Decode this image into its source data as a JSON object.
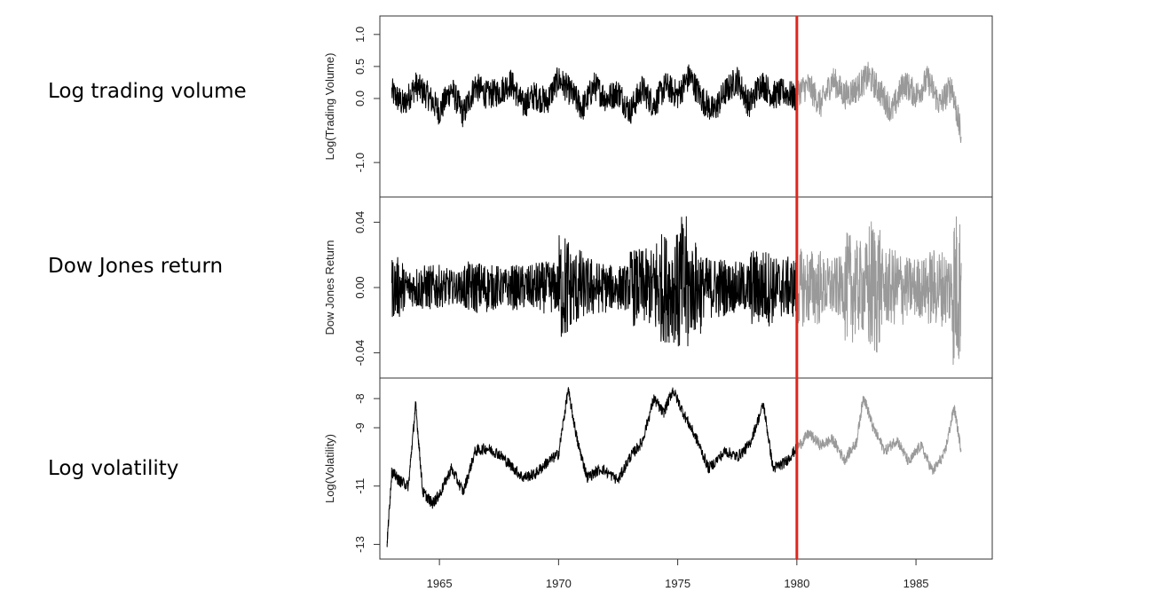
{
  "left_labels": [
    "Log trading volume",
    "Dow Jones return",
    "Log volatility"
  ],
  "chart_data": {
    "type": "line",
    "x_ticks": [
      1965,
      1970,
      1975,
      1980,
      1985
    ],
    "xlim": [
      1962.5,
      1988.2
    ],
    "split_year": 1980,
    "colors": {
      "before": "#000000",
      "after": "#999999",
      "split_line": "#e0261b"
    },
    "panels": [
      {
        "ylabel": "Log(Trading Volume)",
        "ylim": [
          -1.4,
          1.15
        ],
        "y_ticks": [
          -1.0,
          0.0,
          0.5,
          1.0
        ],
        "y_tick_labels": [
          "-1.0",
          "0.0",
          "0.5",
          "1.0"
        ],
        "series": [
          {
            "period": "before",
            "x": [
              1963.0,
              1963.5,
              1964.0,
              1964.5,
              1965.0,
              1965.5,
              1966.0,
              1966.5,
              1967.0,
              1967.5,
              1968.0,
              1968.5,
              1969.0,
              1969.5,
              1970.0,
              1970.5,
              1971.0,
              1971.5,
              1972.0,
              1972.5,
              1973.0,
              1973.5,
              1974.0,
              1974.5,
              1975.0,
              1975.5,
              1976.0,
              1976.5,
              1977.0,
              1977.5,
              1978.0,
              1978.5,
              1979.0,
              1979.5,
              1980.0
            ],
            "y": [
              0.1,
              -0.1,
              0.2,
              0.05,
              -0.2,
              0.15,
              -0.25,
              0.2,
              0.05,
              0.1,
              0.25,
              -0.1,
              0.05,
              -0.05,
              0.3,
              0.1,
              -0.15,
              0.2,
              0.0,
              0.1,
              -0.2,
              0.15,
              -0.1,
              0.2,
              0.05,
              0.35,
              0.0,
              -0.2,
              0.1,
              0.3,
              -0.1,
              0.25,
              0.05,
              0.1,
              0.0
            ]
          },
          {
            "period": "after",
            "x": [
              1980.0,
              1980.5,
              1981.0,
              1981.5,
              1982.0,
              1982.5,
              1983.0,
              1983.5,
              1984.0,
              1984.5,
              1985.0,
              1985.5,
              1986.0,
              1986.5,
              1986.9
            ],
            "y": [
              0.1,
              0.2,
              -0.1,
              0.3,
              0.05,
              0.15,
              0.35,
              0.1,
              -0.2,
              0.25,
              0.05,
              0.3,
              -0.1,
              0.2,
              -0.6
            ]
          }
        ]
      },
      {
        "ylabel": "Dow Jones Return",
        "ylim": [
          -0.05,
          0.05
        ],
        "y_ticks": [
          -0.04,
          0.0,
          0.04
        ],
        "y_tick_labels": [
          "-0.04",
          "0.00",
          "0.04"
        ],
        "series": [
          {
            "period": "before",
            "x": [
              1963.0,
              1963.5,
              1964.0,
              1964.5,
              1965.0,
              1965.5,
              1966.0,
              1966.5,
              1967.0,
              1967.5,
              1968.0,
              1968.5,
              1969.0,
              1969.5,
              1970.0,
              1970.5,
              1971.0,
              1971.5,
              1972.0,
              1972.5,
              1973.0,
              1973.5,
              1974.0,
              1974.5,
              1975.0,
              1975.5,
              1976.0,
              1976.5,
              1977.0,
              1977.5,
              1978.0,
              1978.5,
              1979.0,
              1979.5,
              1980.0
            ],
            "y": [
              0.015,
              -0.008,
              0.01,
              -0.01,
              0.008,
              -0.006,
              0.012,
              -0.012,
              0.01,
              -0.008,
              0.01,
              -0.01,
              0.012,
              -0.012,
              0.03,
              -0.02,
              0.015,
              -0.012,
              0.01,
              -0.01,
              0.02,
              -0.02,
              0.03,
              -0.03,
              0.04,
              -0.025,
              0.015,
              -0.015,
              0.012,
              -0.012,
              0.02,
              -0.02,
              0.015,
              -0.015,
              0.01
            ]
          },
          {
            "period": "after",
            "x": [
              1980.0,
              1980.5,
              1981.0,
              1981.5,
              1982.0,
              1982.5,
              1983.0,
              1983.5,
              1984.0,
              1984.5,
              1985.0,
              1985.5,
              1986.0,
              1986.5,
              1986.9
            ],
            "y": [
              0.02,
              -0.02,
              0.015,
              -0.015,
              0.03,
              -0.025,
              0.04,
              -0.02,
              0.02,
              -0.015,
              0.015,
              -0.02,
              0.02,
              -0.045,
              0.015
            ]
          }
        ]
      },
      {
        "ylabel": "Log(Volatility)",
        "ylim": [
          -13.2,
          -7.6
        ],
        "y_ticks": [
          -13,
          -11,
          -9,
          -8
        ],
        "y_tick_labels": [
          "-13",
          "-11",
          "-9",
          "-8"
        ],
        "series": [
          {
            "period": "before",
            "x": [
              1962.8,
              1963.0,
              1963.3,
              1963.7,
              1964.0,
              1964.3,
              1964.7,
              1965.0,
              1965.5,
              1966.0,
              1966.5,
              1967.0,
              1967.5,
              1968.0,
              1968.5,
              1969.0,
              1969.5,
              1970.0,
              1970.4,
              1970.8,
              1971.2,
              1971.8,
              1972.5,
              1973.0,
              1973.5,
              1974.0,
              1974.4,
              1974.8,
              1975.3,
              1975.8,
              1976.3,
              1977.0,
              1977.5,
              1978.0,
              1978.6,
              1979.0,
              1979.5,
              1980.0
            ],
            "y": [
              -13.0,
              -10.5,
              -10.8,
              -11.0,
              -8.2,
              -11.2,
              -11.6,
              -11.3,
              -10.4,
              -11.2,
              -9.8,
              -9.7,
              -9.9,
              -10.3,
              -10.7,
              -10.6,
              -10.2,
              -9.9,
              -7.7,
              -9.5,
              -10.7,
              -10.4,
              -10.8,
              -10.0,
              -9.5,
              -8.0,
              -8.5,
              -7.7,
              -8.6,
              -9.4,
              -10.4,
              -9.8,
              -10.0,
              -9.6,
              -8.2,
              -10.4,
              -10.2,
              -9.7
            ]
          },
          {
            "period": "after",
            "x": [
              1980.0,
              1980.5,
              1981.0,
              1981.5,
              1982.0,
              1982.5,
              1982.8,
              1983.2,
              1983.7,
              1984.2,
              1984.7,
              1985.2,
              1985.7,
              1986.2,
              1986.6,
              1986.9
            ],
            "y": [
              -9.7,
              -9.2,
              -9.6,
              -9.4,
              -10.1,
              -9.5,
              -7.9,
              -9.0,
              -9.8,
              -9.4,
              -10.2,
              -9.6,
              -10.5,
              -9.9,
              -8.3,
              -9.8
            ]
          }
        ]
      }
    ]
  }
}
